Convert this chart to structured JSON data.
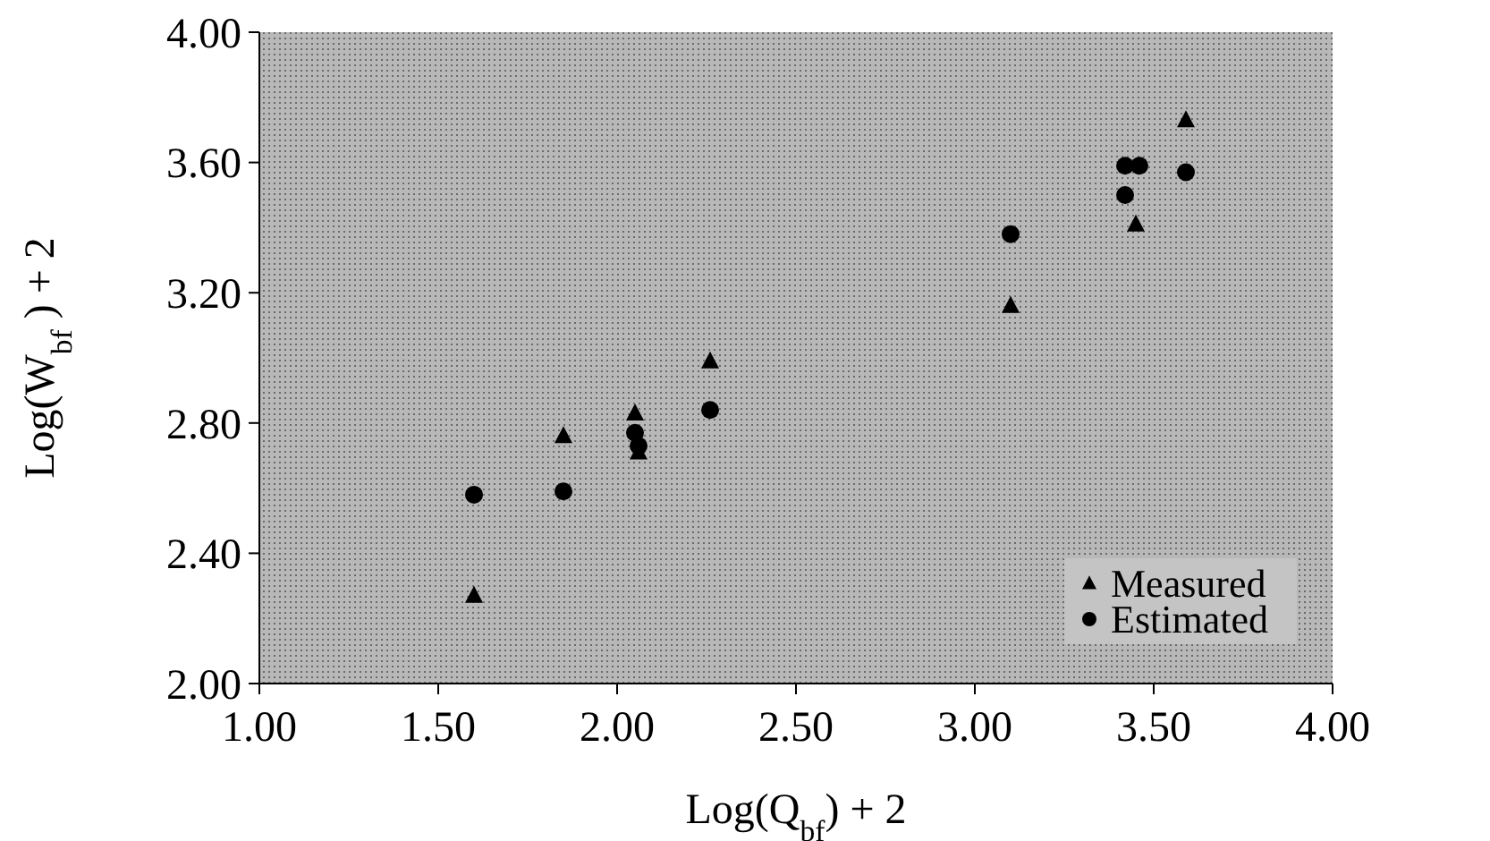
{
  "chart_data": {
    "type": "scatter",
    "xlabel": "Log(Q$_{bf}$) + 2",
    "ylabel": "Log(W$_{bf}$ ) + 2",
    "xlim": [
      1,
      4
    ],
    "ylim": [
      2,
      4
    ],
    "xticks": [
      {
        "value": 1,
        "label": "1.00"
      },
      {
        "value": 1.5,
        "label": "1.50"
      },
      {
        "value": 2,
        "label": "2.00"
      },
      {
        "value": 2.5,
        "label": "2.50"
      },
      {
        "value": 3,
        "label": "3.00"
      },
      {
        "value": 3.5,
        "label": "3.50"
      },
      {
        "value": 4,
        "label": "4.00"
      }
    ],
    "yticks": [
      {
        "value": 2,
        "label": "2.00"
      },
      {
        "value": 2.4,
        "label": "2.40"
      },
      {
        "value": 2.8,
        "label": "2.80"
      },
      {
        "value": 3.2,
        "label": "3.20"
      },
      {
        "value": 3.6,
        "label": "3.60"
      },
      {
        "value": 4,
        "label": "4.00"
      }
    ],
    "grid": false,
    "legend": "bottom right",
    "series": [
      {
        "name": "Measured",
        "color": "#000000",
        "marker": "triangle",
        "x": [
          1.6,
          1.85,
          2.05,
          2.06,
          2.26,
          3.1,
          3.45,
          3.59
        ],
        "values": [
          2.27,
          2.76,
          2.83,
          2.71,
          2.99,
          3.16,
          3.41,
          3.73
        ]
      },
      {
        "name": "Estimated",
        "color": "#000000",
        "marker": "circle",
        "x": [
          1.6,
          1.85,
          2.05,
          2.06,
          2.26,
          3.1,
          3.42,
          3.42,
          3.46,
          3.59
        ],
        "values": [
          2.58,
          2.59,
          2.77,
          2.73,
          2.84,
          3.38,
          3.5,
          3.59,
          3.59,
          3.57
        ]
      }
    ]
  }
}
